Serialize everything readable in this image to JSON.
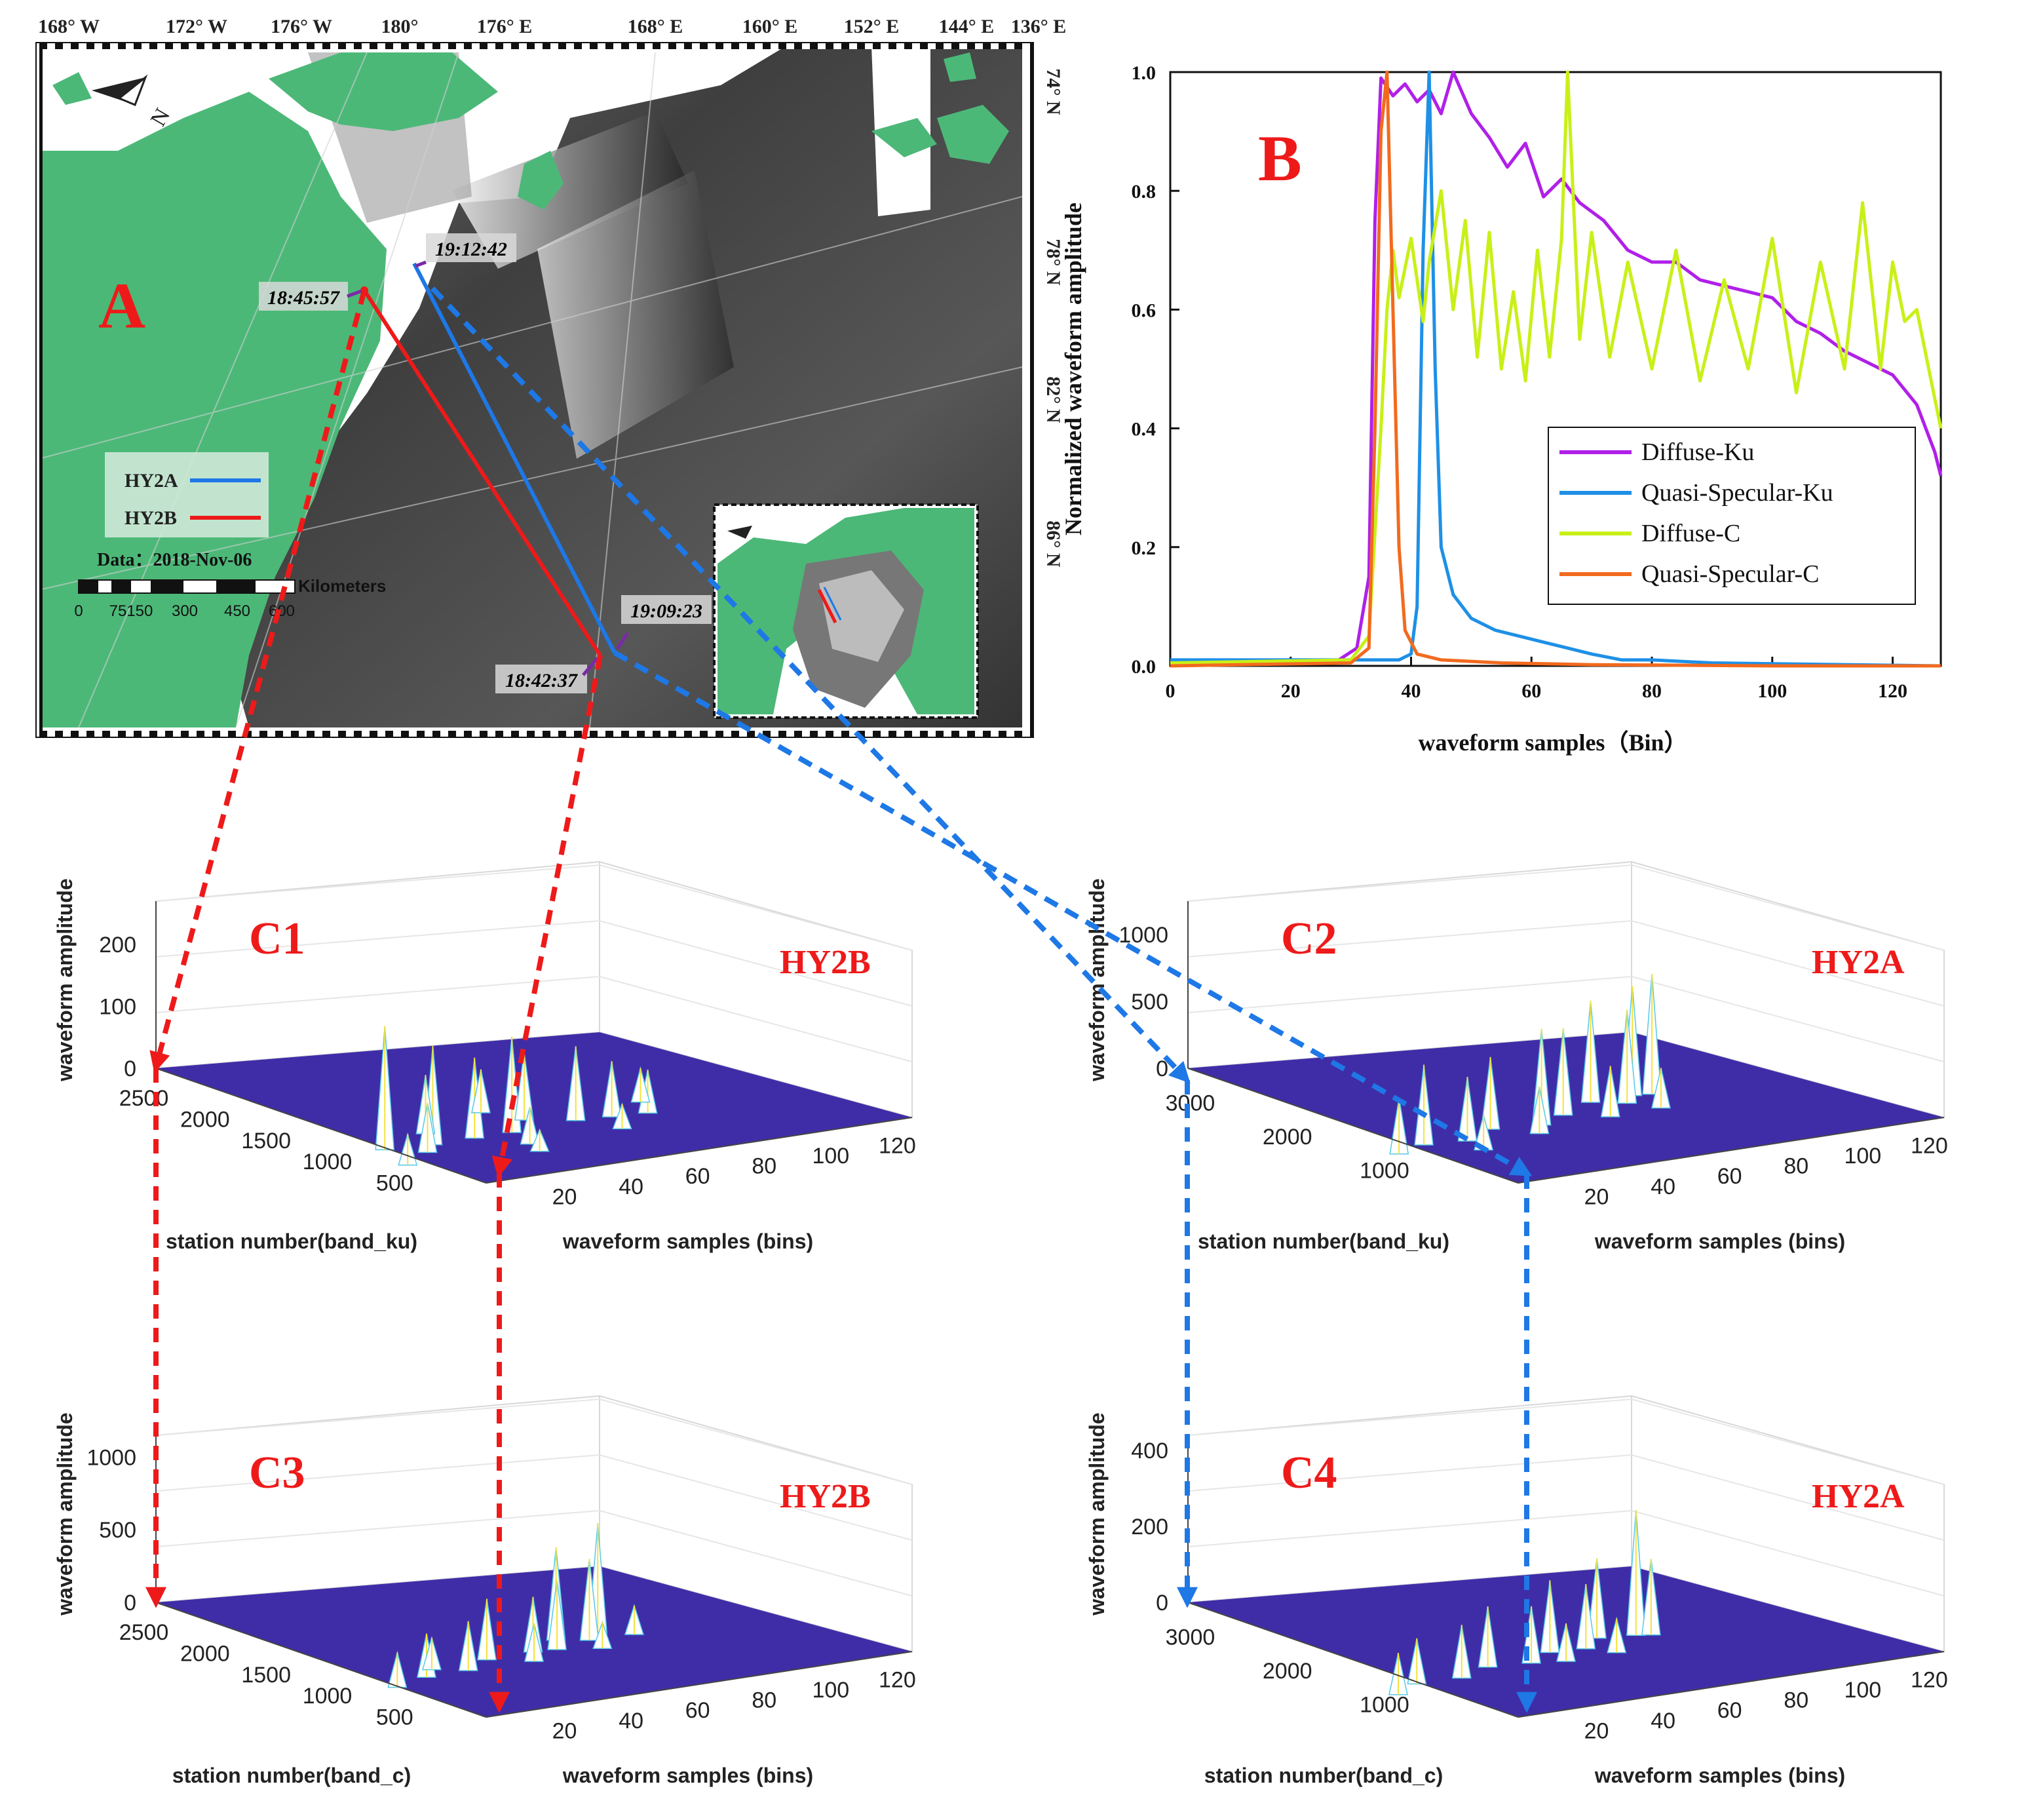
{
  "panel_a": {
    "label": "A",
    "lon_labels": [
      "168° W",
      "172° W",
      "176° W",
      "180°",
      "176° E",
      "168° E",
      "160° E",
      "152° E",
      "144° E",
      "136° E"
    ],
    "lat_labels": [
      "74° N",
      "78° N",
      "82° N",
      "86° N"
    ],
    "time_labels": [
      "18:45:57",
      "19:12:42",
      "19:09:23",
      "18:42:37"
    ],
    "legend": [
      {
        "name": "HY2A",
        "color": "#1E78E6"
      },
      {
        "name": "HY2B",
        "color": "#EE1A1A"
      }
    ],
    "date_text": "Data：2018-Nov-06",
    "scale_label": "Kilometers",
    "scale_ticks": [
      "0",
      "75150",
      "300",
      "450",
      "600"
    ],
    "colors": {
      "land": "#4CB878",
      "hy2a": "#1E78E6",
      "hy2b": "#EE1A1A"
    }
  },
  "chart_data": [
    {
      "type": "line",
      "label": "B",
      "xlabel": "waveform samples（Bin）",
      "ylabel": "Normalized waveform amplitude",
      "xlim": [
        0,
        128
      ],
      "ylim": [
        0,
        1.0
      ],
      "xticks": [
        0,
        20,
        40,
        60,
        80,
        100,
        120
      ],
      "yticks": [
        "0.0",
        "0.2",
        "0.4",
        "0.6",
        "0.8",
        "1.0"
      ],
      "legend": [
        "Diffuse-Ku",
        "Quasi-Specular-Ku",
        "Diffuse-C",
        "Quasi-Specular-C"
      ],
      "series": [
        {
          "name": "Diffuse-Ku",
          "color": "#B020E8",
          "x": [
            0,
            28,
            31,
            33,
            34,
            35,
            37,
            39,
            41,
            43,
            45,
            47,
            50,
            53,
            56,
            59,
            62,
            65,
            68,
            72,
            76,
            80,
            84,
            88,
            92,
            96,
            100,
            104,
            108,
            112,
            116,
            120,
            124,
            127,
            128
          ],
          "y": [
            0.005,
            0.01,
            0.03,
            0.15,
            0.75,
            0.99,
            0.96,
            0.98,
            0.95,
            0.97,
            0.93,
            1.0,
            0.93,
            0.89,
            0.84,
            0.88,
            0.79,
            0.82,
            0.78,
            0.75,
            0.7,
            0.68,
            0.68,
            0.65,
            0.64,
            0.63,
            0.62,
            0.58,
            0.56,
            0.53,
            0.51,
            0.49,
            0.44,
            0.36,
            0.32
          ]
        },
        {
          "name": "Quasi-Specular-Ku",
          "color": "#1E90E6",
          "x": [
            0,
            30,
            38,
            40,
            41,
            42,
            43,
            44,
            45,
            47,
            50,
            54,
            58,
            62,
            66,
            70,
            75,
            80,
            90,
            128
          ],
          "y": [
            0.01,
            0.01,
            0.01,
            0.02,
            0.1,
            0.7,
            1.0,
            0.5,
            0.2,
            0.12,
            0.08,
            0.06,
            0.05,
            0.04,
            0.03,
            0.02,
            0.01,
            0.01,
            0.005,
            0.0
          ]
        },
        {
          "name": "Diffuse-C",
          "color": "#C8F018",
          "x": [
            0,
            30,
            33,
            35,
            36,
            37,
            38,
            40,
            42,
            43,
            45,
            47,
            49,
            51,
            53,
            55,
            57,
            59,
            61,
            63,
            65,
            66,
            68,
            70,
            73,
            76,
            80,
            84,
            88,
            92,
            96,
            100,
            104,
            108,
            112,
            115,
            118,
            120,
            122,
            124,
            126,
            128
          ],
          "y": [
            0.005,
            0.01,
            0.05,
            0.4,
            0.6,
            0.7,
            0.62,
            0.72,
            0.58,
            0.68,
            0.8,
            0.6,
            0.75,
            0.52,
            0.73,
            0.5,
            0.63,
            0.48,
            0.7,
            0.52,
            0.72,
            1.0,
            0.55,
            0.73,
            0.52,
            0.68,
            0.5,
            0.7,
            0.48,
            0.65,
            0.5,
            0.72,
            0.46,
            0.68,
            0.5,
            0.78,
            0.5,
            0.68,
            0.58,
            0.6,
            0.5,
            0.4
          ]
        },
        {
          "name": "Quasi-Specular-C",
          "color": "#F26A1E",
          "x": [
            0,
            30,
            33,
            34,
            35,
            36,
            37,
            38,
            39,
            41,
            45,
            55,
            70,
            100,
            128
          ],
          "y": [
            0.0,
            0.005,
            0.03,
            0.4,
            0.9,
            1.0,
            0.6,
            0.2,
            0.06,
            0.02,
            0.01,
            0.005,
            0.002,
            0.0,
            0.0
          ]
        }
      ]
    },
    {
      "type": "surface3d",
      "label": "C1",
      "satellite": "HY2B",
      "zlabel": "waveform amplitude",
      "ylabel": "station number(band_ku)",
      "xlabel": "waveform samples (bins)",
      "zticks": [
        "0",
        "100",
        "200"
      ],
      "yticks": [
        "2500",
        "2000",
        "1500",
        "1000",
        "500"
      ],
      "xticks": [
        "20",
        "40",
        "60",
        "80",
        "100",
        "120"
      ],
      "zlim": [
        0,
        270
      ],
      "ylim": [
        0,
        2700
      ],
      "xlim": [
        0,
        128
      ],
      "peaks": [
        [
          0.78,
          0.42,
          200
        ],
        [
          0.7,
          0.46,
          160
        ],
        [
          0.62,
          0.48,
          130
        ],
        [
          0.55,
          0.5,
          155
        ],
        [
          0.48,
          0.44,
          110
        ],
        [
          0.42,
          0.52,
          120
        ],
        [
          0.36,
          0.55,
          90
        ],
        [
          0.3,
          0.58,
          70
        ],
        [
          0.66,
          0.38,
          95
        ],
        [
          0.74,
          0.5,
          80
        ],
        [
          0.58,
          0.6,
          60
        ],
        [
          0.5,
          0.33,
          70
        ],
        [
          0.82,
          0.55,
          50
        ],
        [
          0.26,
          0.5,
          55
        ],
        [
          0.6,
          0.66,
          35
        ],
        [
          0.4,
          0.64,
          40
        ]
      ]
    },
    {
      "type": "surface3d",
      "label": "C2",
      "satellite": "HY2A",
      "zlabel": "waveform amplitude",
      "ylabel": "station number(band_ku)",
      "xlabel": "waveform samples (bins)",
      "zticks": [
        "0",
        "500",
        "1000"
      ],
      "yticks": [
        "3000",
        "2000",
        "1000"
      ],
      "xticks": [
        "20",
        "40",
        "60",
        "80",
        "100",
        "120"
      ],
      "zlim": [
        0,
        1250
      ],
      "ylim": [
        0,
        3400
      ],
      "xlim": [
        0,
        128
      ],
      "peaks": [
        [
          0.25,
          0.42,
          900
        ],
        [
          0.28,
          0.4,
          820
        ],
        [
          0.32,
          0.44,
          700
        ],
        [
          0.36,
          0.38,
          760
        ],
        [
          0.45,
          0.42,
          650
        ],
        [
          0.52,
          0.45,
          720
        ],
        [
          0.6,
          0.4,
          540
        ],
        [
          0.68,
          0.44,
          480
        ],
        [
          0.75,
          0.4,
          600
        ],
        [
          0.82,
          0.42,
          420
        ],
        [
          0.4,
          0.5,
          380
        ],
        [
          0.56,
          0.5,
          350
        ],
        [
          0.3,
          0.52,
          300
        ],
        [
          0.7,
          0.52,
          260
        ]
      ]
    },
    {
      "type": "surface3d",
      "label": "C3",
      "satellite": "HY2B",
      "zlabel": "waveform amplitude",
      "ylabel": "station number(band_c)",
      "xlabel": "waveform samples (bins)",
      "zticks": [
        "0",
        "500",
        "1000"
      ],
      "yticks": [
        "2500",
        "2000",
        "1500",
        "1000",
        "500"
      ],
      "xticks": [
        "20",
        "40",
        "60",
        "80",
        "100",
        "120"
      ],
      "zlim": [
        0,
        1150
      ],
      "ylim": [
        0,
        2700
      ],
      "xlim": [
        0,
        128
      ],
      "peaks": [
        [
          0.3,
          0.42,
          760
        ],
        [
          0.34,
          0.45,
          560
        ],
        [
          0.38,
          0.4,
          640
        ],
        [
          0.42,
          0.46,
          480
        ],
        [
          0.46,
          0.44,
          380
        ],
        [
          0.55,
          0.42,
          420
        ],
        [
          0.62,
          0.46,
          340
        ],
        [
          0.7,
          0.44,
          300
        ],
        [
          0.78,
          0.46,
          240
        ],
        [
          0.5,
          0.5,
          260
        ],
        [
          0.26,
          0.48,
          200
        ],
        [
          0.66,
          0.4,
          220
        ],
        [
          0.36,
          0.52,
          180
        ]
      ]
    },
    {
      "type": "surface3d",
      "label": "C4",
      "satellite": "HY2A",
      "zlabel": "waveform amplitude",
      "ylabel": "station number(band_c)",
      "xlabel": "waveform samples (bins)",
      "zticks": [
        "0",
        "200",
        "400"
      ],
      "yticks": [
        "3000",
        "2000",
        "1000"
      ],
      "xticks": [
        "20",
        "40",
        "60",
        "80",
        "100",
        "120"
      ],
      "zlim": [
        0,
        440
      ],
      "ylim": [
        0,
        3400
      ],
      "xlim": [
        0,
        128
      ],
      "peaks": [
        [
          0.3,
          0.44,
          330
        ],
        [
          0.28,
          0.46,
          200
        ],
        [
          0.36,
          0.4,
          210
        ],
        [
          0.42,
          0.45,
          170
        ],
        [
          0.48,
          0.42,
          190
        ],
        [
          0.55,
          0.46,
          150
        ],
        [
          0.62,
          0.42,
          160
        ],
        [
          0.7,
          0.45,
          140
        ],
        [
          0.78,
          0.42,
          120
        ],
        [
          0.85,
          0.46,
          110
        ],
        [
          0.5,
          0.5,
          100
        ],
        [
          0.4,
          0.52,
          90
        ]
      ]
    }
  ]
}
